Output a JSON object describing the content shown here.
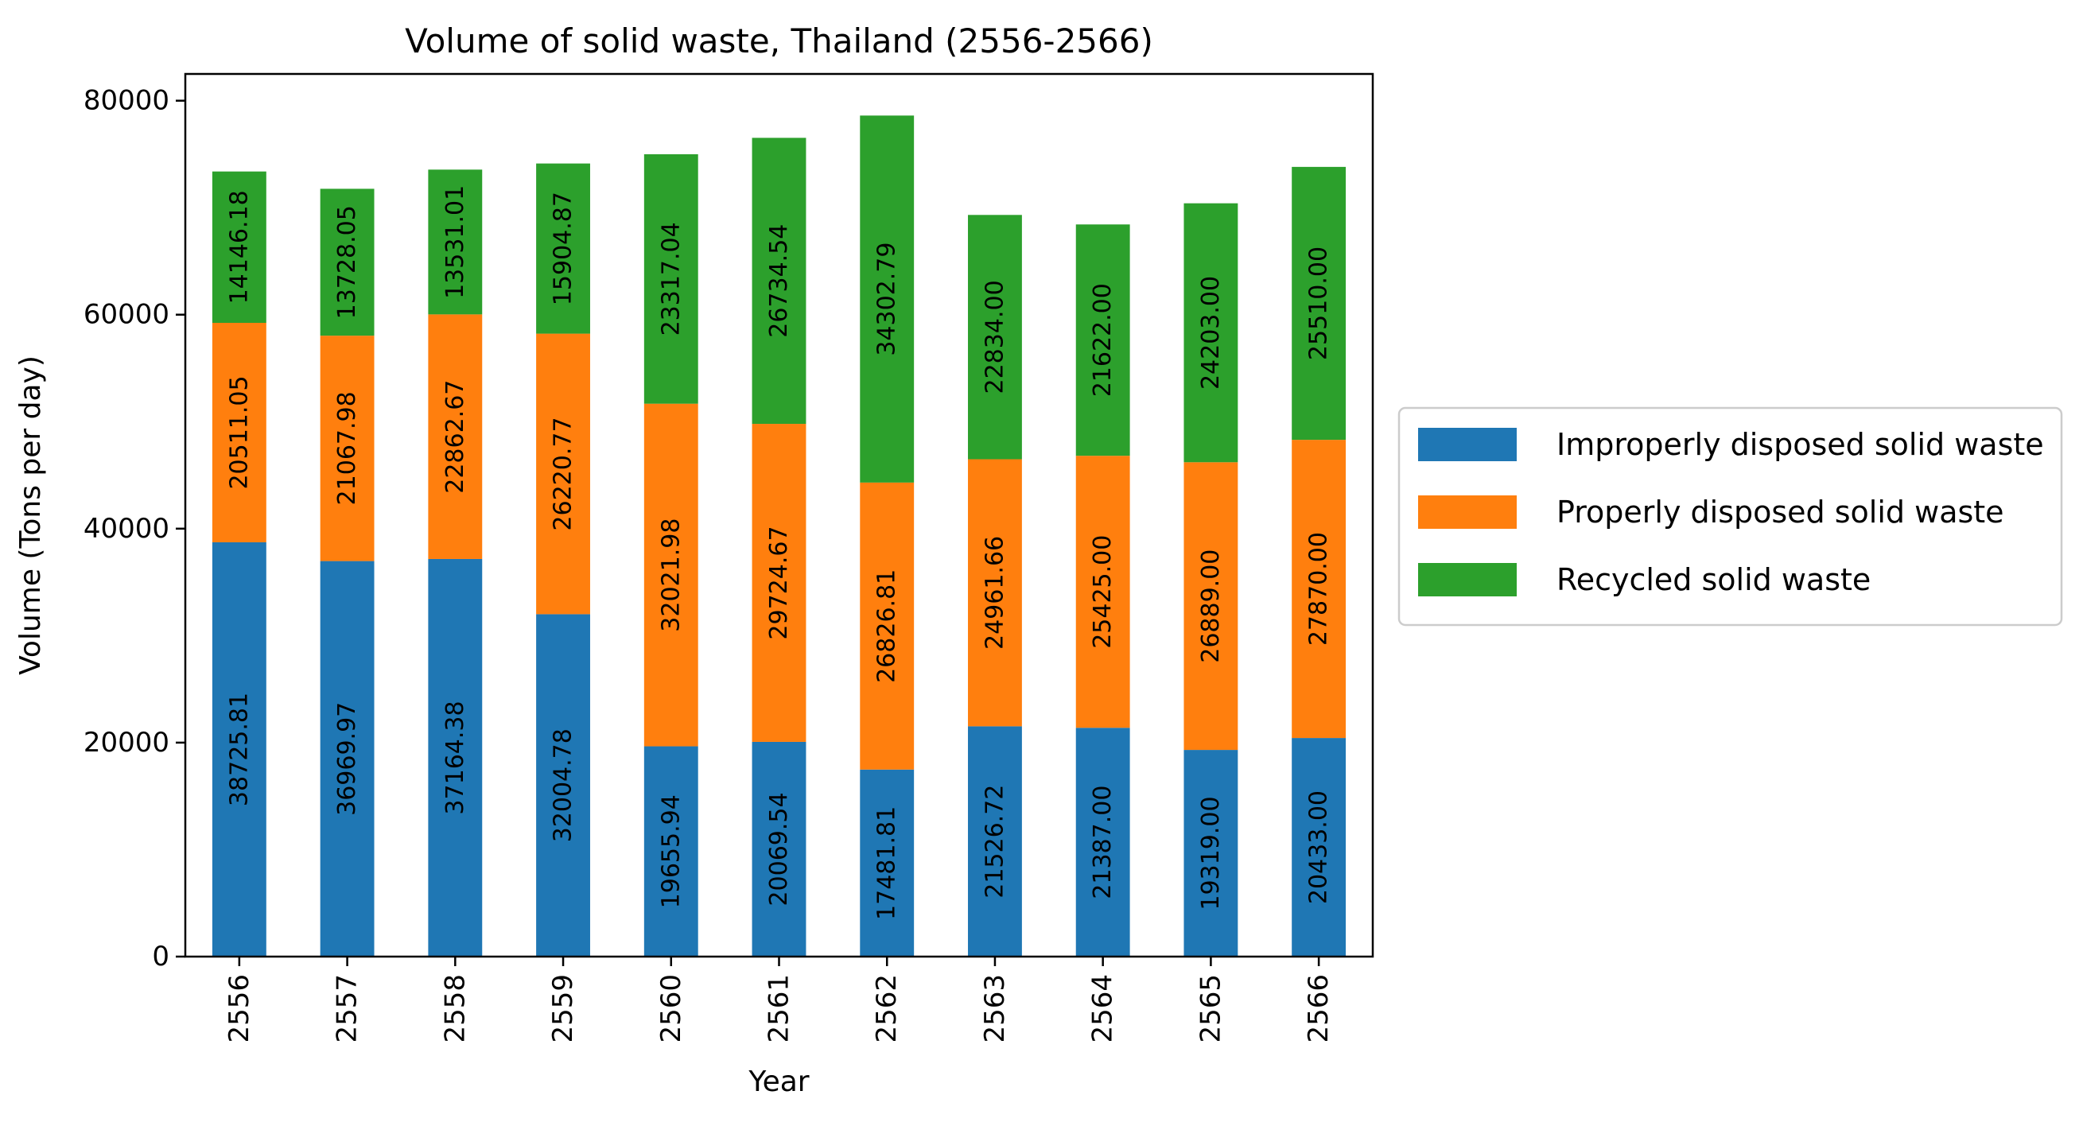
{
  "chart_data": {
    "type": "bar",
    "stacked": true,
    "title": "Volume of solid waste, Thailand (2556-2566)",
    "xlabel": "Year",
    "ylabel": "Volume (Tons per day)",
    "ylim": [
      0,
      82500
    ],
    "yticks": [
      0,
      20000,
      40000,
      60000,
      80000
    ],
    "ytick_labels": [
      "0",
      "20000",
      "40000",
      "60000",
      "80000"
    ],
    "categories": [
      "2556",
      "2557",
      "2558",
      "2559",
      "2560",
      "2561",
      "2562",
      "2563",
      "2564",
      "2565",
      "2566"
    ],
    "series": [
      {
        "name": "Improperly disposed solid waste",
        "color": "#1f77b4",
        "values": [
          38725.81,
          36969.97,
          37164.38,
          32004.78,
          19655.94,
          20069.54,
          17481.81,
          21526.72,
          21387.0,
          19319.0,
          20433.0
        ],
        "labels": [
          "38725.81",
          "36969.97",
          "37164.38",
          "32004.78",
          "19655.94",
          "20069.54",
          "17481.81",
          "21526.72",
          "21387.00",
          "19319.00",
          "20433.00"
        ]
      },
      {
        "name": "Properly disposed solid waste",
        "color": "#ff7f0e",
        "values": [
          20511.05,
          21067.98,
          22862.67,
          26220.77,
          32021.98,
          29724.67,
          26826.81,
          24961.66,
          25425.0,
          26889.0,
          27870.0
        ],
        "labels": [
          "20511.05",
          "21067.98",
          "22862.67",
          "26220.77",
          "32021.98",
          "29724.67",
          "26826.81",
          "24961.66",
          "25425.00",
          "26889.00",
          "27870.00"
        ]
      },
      {
        "name": "Recycled solid waste",
        "color": "#2ca02c",
        "values": [
          14146.18,
          13728.05,
          13531.01,
          15904.87,
          23317.04,
          26734.54,
          34302.79,
          22834.0,
          21622.0,
          24203.0,
          25510.0
        ],
        "labels": [
          "14146.18",
          "13728.05",
          "13531.01",
          "15904.87",
          "23317.04",
          "26734.54",
          "34302.79",
          "22834.00",
          "21622.00",
          "24203.00",
          "25510.00"
        ]
      }
    ],
    "legend": {
      "position": "right"
    },
    "grid": false
  }
}
